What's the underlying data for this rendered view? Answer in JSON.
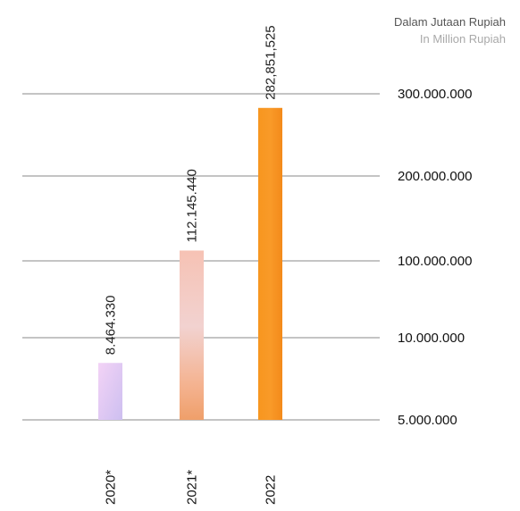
{
  "chart_data": {
    "type": "bar",
    "unit_label": "Dalam Jutaan Rupiah",
    "unit_label_en": "In Million Rupiah",
    "categories": [
      "2020*",
      "2021*",
      "2022"
    ],
    "values": [
      8464330,
      112145440,
      282851525
    ],
    "value_labels": [
      "8.464.330",
      "112.145.440",
      "282,851,525"
    ],
    "y_ticks": [
      {
        "value": 5000000,
        "label": "5.000.000"
      },
      {
        "value": 10000000,
        "label": "10.000.000"
      },
      {
        "value": 100000000,
        "label": "100.000.000"
      },
      {
        "value": 200000000,
        "label": "200.000.000"
      },
      {
        "value": 300000000,
        "label": "300.000.000"
      }
    ],
    "grid": true,
    "legend": "none",
    "bar_colors": [
      "#dcc8f3",
      "#eebfae",
      "#f7931e"
    ]
  }
}
